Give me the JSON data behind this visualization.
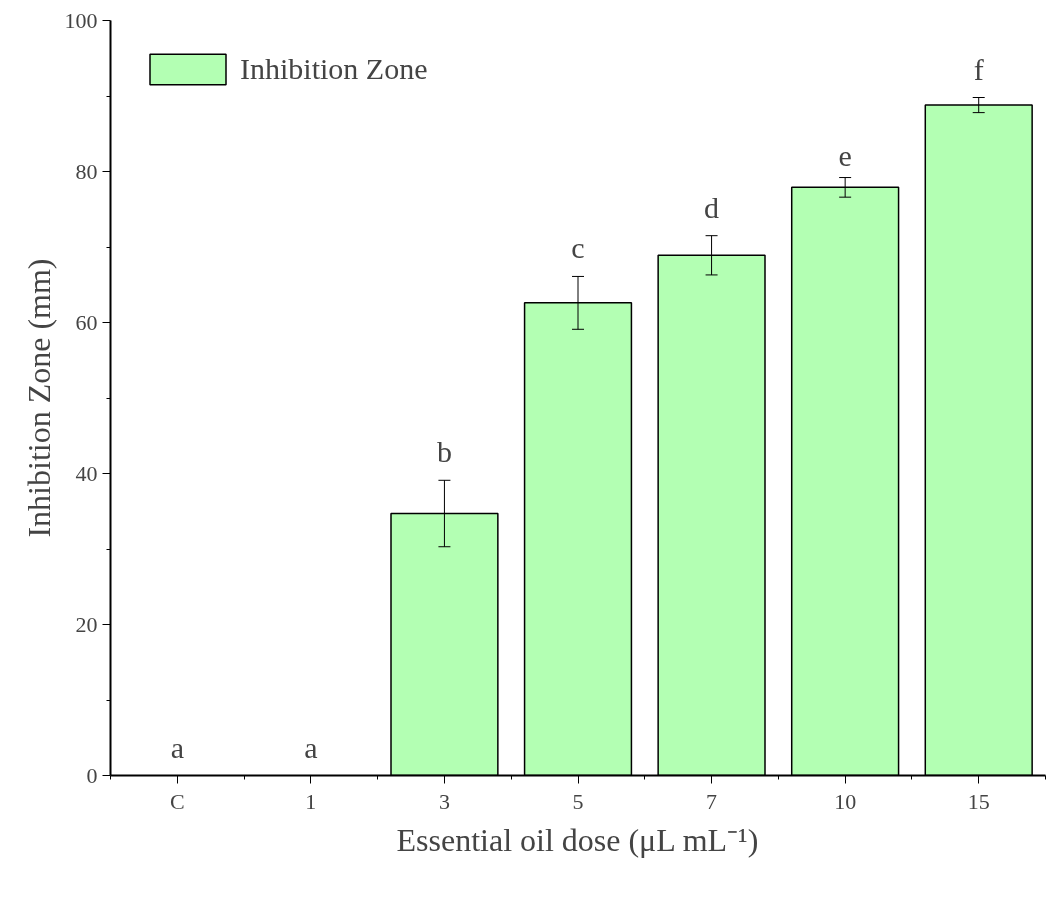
{
  "chart_data": {
    "type": "bar",
    "xlabel": "Essential oil dose (μL mL⁻¹)",
    "ylabel": "Inhibition Zone (mm)",
    "categories": [
      "C",
      "1",
      "3",
      "5",
      "7",
      "10",
      "15"
    ],
    "series": [
      {
        "name": "Inhibition Zone",
        "color": "#b3ffb3",
        "values": [
          0,
          0,
          34.7,
          62.6,
          68.9,
          77.9,
          88.8
        ],
        "errors": [
          null,
          null,
          4.4,
          3.5,
          2.6,
          1.3,
          1.0
        ]
      }
    ],
    "ylim": [
      0,
      100
    ],
    "yticks": [
      0,
      20,
      40,
      60,
      80,
      100
    ],
    "grid": false,
    "legend": "top left",
    "annotations": [
      "a",
      "a",
      "b",
      "c",
      "d",
      "e",
      "f"
    ]
  }
}
